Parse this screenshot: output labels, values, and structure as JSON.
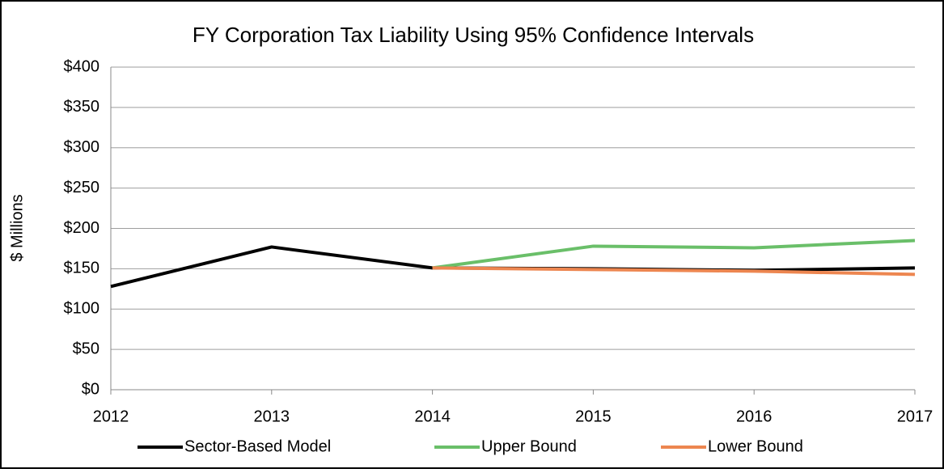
{
  "chart_data": {
    "type": "line",
    "title": "FY Corporation Tax Liability Using 95% Confidence Intervals",
    "y_label": "$ Millions",
    "x": [
      2012,
      2013,
      2014,
      2015,
      2016,
      2017
    ],
    "xlim": [
      2012,
      2017
    ],
    "xticks": [
      2012,
      2013,
      2014,
      2015,
      2016,
      2017
    ],
    "ylim": [
      0,
      400
    ],
    "yticks": [
      {
        "value": 0,
        "label": "$0"
      },
      {
        "value": 50,
        "label": "$50"
      },
      {
        "value": 100,
        "label": "$100"
      },
      {
        "value": 150,
        "label": "$150"
      },
      {
        "value": 200,
        "label": "$200"
      },
      {
        "value": 250,
        "label": "$250"
      },
      {
        "value": 300,
        "label": "$300"
      },
      {
        "value": 350,
        "label": "$350"
      },
      {
        "value": 400,
        "label": "$400"
      }
    ],
    "grid": true,
    "legend": "bottom",
    "series": [
      {
        "name": "Sector-Based Model",
        "color": "#000000",
        "values": [
          128,
          177,
          151,
          150,
          148,
          151
        ]
      },
      {
        "name": "Upper Bound",
        "color": "#6abf69",
        "values": [
          null,
          null,
          151,
          178,
          176,
          185
        ]
      },
      {
        "name": "Lower Bound",
        "color": "#ed8650",
        "values": [
          null,
          null,
          151,
          149,
          147,
          143
        ]
      }
    ]
  }
}
